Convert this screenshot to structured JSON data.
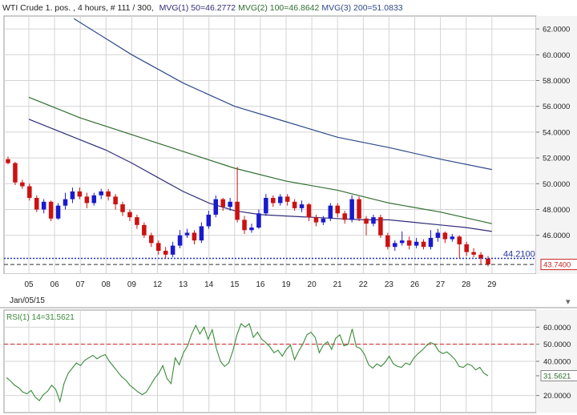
{
  "header": {
    "symbol": "WTI Crude 1. pos. , 4 hours, # 111 / 300,",
    "ma1": "MVG(1) 50=46.2772",
    "ma2": "MVG(2) 100=46.8642",
    "ma3": "MVG(3) 200=51.0833"
  },
  "rsi_header": "RSI(1) 14=31.5621",
  "date_label": "Jan/05/15",
  "colors": {
    "up": "#1a1acc",
    "down": "#cc1111",
    "ma1": "#2e2e7a",
    "ma2": "#2f6e2f",
    "ma3": "#2e4a8a",
    "rsi": "#3a8a3a",
    "grid": "#d4d4d4",
    "level_blue": "#1f2fbf",
    "level_red": "#cc2222"
  },
  "chart_data": [
    {
      "type": "candlestick",
      "title": "WTI Crude 1. pos. , 4 hours, # 111 / 300",
      "ylim": [
        43.0,
        63.0
      ],
      "yticks": [
        "62.0000",
        "60.0000",
        "58.0000",
        "56.0000",
        "54.0000",
        "52.0000",
        "50.0000",
        "48.0000",
        "46.0000"
      ],
      "xticks": [
        "05",
        "06",
        "07",
        "08",
        "09",
        "12",
        "13",
        "14",
        "15",
        "16",
        "19",
        "20",
        "21",
        "22",
        "23",
        "26",
        "27",
        "28",
        "29"
      ],
      "price_labels": [
        "44.2100",
        "43.7400"
      ],
      "horizontal_levels": [
        44.21,
        43.74
      ],
      "series": [
        {
          "name": "MVG(1) 50",
          "points": [
            [
              0,
              55.0
            ],
            [
              1,
              54.2
            ],
            [
              2,
              53.4
            ],
            [
              3,
              52.6
            ],
            [
              4,
              51.6
            ],
            [
              5,
              50.5
            ],
            [
              6,
              49.4
            ],
            [
              7,
              48.5
            ],
            [
              8,
              47.9
            ],
            [
              9,
              47.6
            ],
            [
              10,
              47.5
            ],
            [
              11,
              47.4
            ],
            [
              12,
              47.3
            ],
            [
              13,
              47.2
            ],
            [
              14,
              47.2
            ],
            [
              15,
              47.0
            ],
            [
              16,
              46.8
            ],
            [
              17,
              46.6
            ],
            [
              18,
              46.3
            ]
          ]
        },
        {
          "name": "MVG(2) 100",
          "points": [
            [
              0,
              56.7
            ],
            [
              2,
              55.1
            ],
            [
              4,
              53.8
            ],
            [
              6,
              52.5
            ],
            [
              8,
              51.2
            ],
            [
              10,
              50.2
            ],
            [
              12,
              49.5
            ],
            [
              14,
              48.5
            ],
            [
              16,
              47.8
            ],
            [
              18,
              46.9
            ]
          ]
        },
        {
          "name": "MVG(3) 200",
          "points": [
            [
              1.75,
              62.8
            ],
            [
              4,
              60.0
            ],
            [
              6,
              57.8
            ],
            [
              8,
              56.0
            ],
            [
              10,
              54.8
            ],
            [
              12,
              53.6
            ],
            [
              14,
              52.8
            ],
            [
              16,
              51.9
            ],
            [
              18,
              51.1
            ]
          ]
        }
      ],
      "candles": [
        [
          51.9,
          51.6,
          52.1,
          51.5
        ],
        [
          51.6,
          50.1,
          51.7,
          49.9
        ],
        [
          50.1,
          49.8,
          50.3,
          49.6
        ],
        [
          49.8,
          48.9,
          50.0,
          48.7
        ],
        [
          48.9,
          48.0,
          49.1,
          47.8
        ],
        [
          48.0,
          48.6,
          48.8,
          47.7
        ],
        [
          48.6,
          47.3,
          48.7,
          47.1
        ],
        [
          47.3,
          48.3,
          48.5,
          47.2
        ],
        [
          48.3,
          48.8,
          49.3,
          48.0
        ],
        [
          48.8,
          49.4,
          49.7,
          48.5
        ],
        [
          49.4,
          49.0,
          49.7,
          48.8
        ],
        [
          49.0,
          48.5,
          49.3,
          48.1
        ],
        [
          48.5,
          49.1,
          49.3,
          48.3
        ],
        [
          49.1,
          49.4,
          49.6,
          48.8
        ],
        [
          49.4,
          49.0,
          49.6,
          48.7
        ],
        [
          49.0,
          48.4,
          49.2,
          48.0
        ],
        [
          48.4,
          47.8,
          48.6,
          47.5
        ],
        [
          47.8,
          47.4,
          48.0,
          47.1
        ],
        [
          47.4,
          46.8,
          47.6,
          46.5
        ],
        [
          46.8,
          46.0,
          47.0,
          45.8
        ],
        [
          46.0,
          45.4,
          46.2,
          45.1
        ],
        [
          45.4,
          44.8,
          45.6,
          44.5
        ],
        [
          44.8,
          44.5,
          45.1,
          44.2
        ],
        [
          44.5,
          45.2,
          45.5,
          44.3
        ],
        [
          45.2,
          46.0,
          46.4,
          45.0
        ],
        [
          46.0,
          46.2,
          46.5,
          45.8
        ],
        [
          46.2,
          45.6,
          46.4,
          45.3
        ],
        [
          45.6,
          46.7,
          47.0,
          45.4
        ],
        [
          46.7,
          47.6,
          47.9,
          46.5
        ],
        [
          47.6,
          48.8,
          49.1,
          47.4
        ],
        [
          48.8,
          48.2,
          48.9,
          47.9
        ],
        [
          48.2,
          48.6,
          48.9,
          47.9
        ],
        [
          48.6,
          47.2,
          51.3,
          47.0
        ],
        [
          47.2,
          46.4,
          47.5,
          46.1
        ],
        [
          46.4,
          46.6,
          46.9,
          46.2
        ],
        [
          46.6,
          47.7,
          48.0,
          46.5
        ],
        [
          47.7,
          48.9,
          49.2,
          47.5
        ],
        [
          48.9,
          48.5,
          49.1,
          48.2
        ],
        [
          48.5,
          49.0,
          49.2,
          48.3
        ],
        [
          49.0,
          48.6,
          49.2,
          48.3
        ],
        [
          48.6,
          48.1,
          48.8,
          47.9
        ],
        [
          48.1,
          48.4,
          48.7,
          47.8
        ],
        [
          48.4,
          47.4,
          48.5,
          47.1
        ],
        [
          47.4,
          47.0,
          47.6,
          46.7
        ],
        [
          47.0,
          47.3,
          47.5,
          46.8
        ],
        [
          47.3,
          48.3,
          48.5,
          47.1
        ],
        [
          48.3,
          47.7,
          48.5,
          47.4
        ],
        [
          47.7,
          47.2,
          47.9,
          46.9
        ],
        [
          47.2,
          48.8,
          49.1,
          47.0
        ],
        [
          48.8,
          47.3,
          49.0,
          47.1
        ],
        [
          47.3,
          46.9,
          47.5,
          46.0
        ],
        [
          46.9,
          47.4,
          47.6,
          46.7
        ],
        [
          47.4,
          46.0,
          47.6,
          45.8
        ],
        [
          46.0,
          45.1,
          46.2,
          44.9
        ],
        [
          45.1,
          45.4,
          45.6,
          44.8
        ],
        [
          45.4,
          45.6,
          46.3,
          45.2
        ],
        [
          45.6,
          45.2,
          45.9,
          44.9
        ],
        [
          45.2,
          45.5,
          45.8,
          45.0
        ],
        [
          45.5,
          45.1,
          45.7,
          44.9
        ],
        [
          45.1,
          45.8,
          46.4,
          44.9
        ],
        [
          45.8,
          46.2,
          46.5,
          45.5
        ],
        [
          46.2,
          45.7,
          46.3,
          45.4
        ],
        [
          45.7,
          45.9,
          46.1,
          45.5
        ],
        [
          45.9,
          45.3,
          46.0,
          44.2
        ],
        [
          45.3,
          44.7,
          45.5,
          44.4
        ],
        [
          44.7,
          44.5,
          45.0,
          44.3
        ],
        [
          44.5,
          44.2,
          44.7,
          43.7
        ],
        [
          44.2,
          43.74,
          44.4,
          43.6
        ]
      ]
    },
    {
      "type": "line",
      "title": "RSI(1) 14",
      "ylim": [
        10,
        70
      ],
      "yticks": [
        "60.0000",
        "50.0000",
        "40.0000",
        "31.5621",
        "20.0000"
      ],
      "reference_level": 50,
      "series": [
        {
          "name": "RSI(1) 14",
          "values": [
            30.5,
            28.5,
            26.0,
            24.5,
            22.0,
            21.0,
            23.0,
            19.0,
            17.0,
            20.5,
            22.5,
            26.0,
            23.5,
            16.5,
            27.0,
            33.0,
            36.0,
            39.0,
            37.5,
            40.5,
            42.0,
            43.5,
            41.5,
            43.0,
            44.0,
            40.0,
            37.0,
            34.0,
            31.0,
            29.0,
            26.0,
            24.0,
            22.0,
            20.5,
            22.0,
            26.0,
            30.0,
            33.0,
            37.5,
            30.0,
            27.0,
            42.0,
            38.0,
            45.0,
            49.0,
            56.0,
            61.0,
            56.0,
            60.0,
            53.0,
            58.5,
            47.5,
            40.0,
            37.0,
            39.0,
            46.0,
            55.5,
            62.0,
            60.0,
            62.0,
            54.0,
            57.0,
            53.0,
            51.0,
            48.5,
            45.0,
            46.5,
            43.0,
            47.0,
            49.5,
            41.0,
            46.0,
            50.0,
            55.5,
            57.0,
            54.0,
            45.0,
            49.5,
            51.5,
            47.0,
            53.5,
            55.5,
            49.0,
            50.0,
            59.0,
            48.5,
            47.5,
            44.0,
            38.0,
            36.0,
            38.5,
            37.0,
            39.5,
            43.0,
            38.5,
            37.0,
            36.5,
            39.0,
            38.0,
            42.0,
            44.5,
            46.5,
            49.0,
            51.0,
            50.0,
            46.0,
            44.5,
            45.5,
            43.5,
            41.0,
            37.0,
            36.5,
            38.5,
            37.5,
            35.0,
            36.5,
            33.0,
            31.5621
          ]
        }
      ]
    }
  ]
}
